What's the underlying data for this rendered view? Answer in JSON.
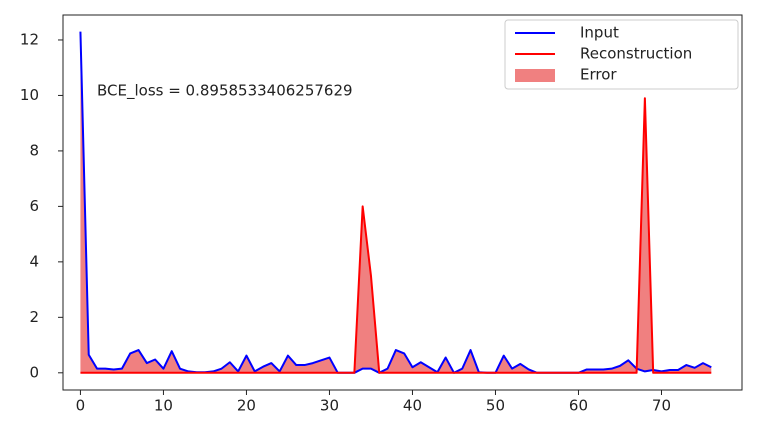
{
  "chart_data": {
    "type": "line",
    "annotation": "BCE_loss = 0.8958533406257629",
    "x": [
      0,
      1,
      2,
      3,
      4,
      5,
      6,
      7,
      8,
      9,
      10,
      11,
      12,
      13,
      14,
      15,
      16,
      17,
      18,
      19,
      20,
      21,
      22,
      23,
      24,
      25,
      26,
      27,
      28,
      29,
      30,
      31,
      32,
      33,
      34,
      35,
      36,
      37,
      38,
      39,
      40,
      41,
      42,
      43,
      44,
      45,
      46,
      47,
      48,
      49,
      50,
      51,
      52,
      53,
      54,
      55,
      56,
      57,
      58,
      59,
      60,
      61,
      62,
      63,
      64,
      65,
      66,
      67,
      68,
      69,
      70,
      71,
      72,
      73,
      74,
      75,
      76
    ],
    "series": [
      {
        "name": "Input",
        "color": "#0000ff",
        "values": [
          12.3,
          0.65,
          0.15,
          0.15,
          0.12,
          0.15,
          0.7,
          0.82,
          0.35,
          0.48,
          0.15,
          0.78,
          0.15,
          0.05,
          0.02,
          0.02,
          0.05,
          0.15,
          0.38,
          0.05,
          0.62,
          0.05,
          0.22,
          0.35,
          0.05,
          0.62,
          0.28,
          0.28,
          0.35,
          0.45,
          0.55,
          0,
          0,
          0,
          0.15,
          0.15,
          0,
          0.15,
          0.82,
          0.7,
          0.2,
          0.38,
          0.2,
          0.02,
          0.55,
          0,
          0.15,
          0.82,
          0.02,
          0,
          0,
          0.62,
          0.15,
          0.32,
          0.12,
          0,
          0,
          0,
          0,
          0,
          0,
          0.12,
          0.12,
          0.12,
          0.15,
          0.25,
          0.45,
          0.15,
          0.05,
          0.1,
          0.05,
          0.1,
          0.1,
          0.28,
          0.18,
          0.35,
          0.2
        ]
      },
      {
        "name": "Reconstruction",
        "color": "#ff0000",
        "values": [
          0,
          0,
          0,
          0,
          0,
          0,
          0,
          0,
          0,
          0,
          0,
          0,
          0,
          0,
          0,
          0,
          0,
          0,
          0,
          0,
          0,
          0,
          0,
          0,
          0,
          0,
          0,
          0,
          0,
          0,
          0,
          0,
          0,
          0,
          6.0,
          3.5,
          0,
          0,
          0,
          0,
          0,
          0,
          0,
          0,
          0,
          0,
          0,
          0,
          0,
          0,
          0,
          0,
          0,
          0,
          0,
          0,
          0,
          0,
          0,
          0,
          0,
          0,
          0,
          0,
          0,
          0,
          0,
          0,
          9.9,
          0,
          0,
          0,
          0,
          0,
          0,
          0,
          0
        ]
      }
    ],
    "fill_between": {
      "name": "Error",
      "color": "#f08080"
    },
    "xlim": [
      -2.1,
      79.7
    ],
    "ylim": [
      -0.62,
      12.9
    ],
    "xticks": [
      0,
      10,
      20,
      30,
      40,
      50,
      60,
      70
    ],
    "yticks": [
      0,
      2,
      4,
      6,
      8,
      10,
      12
    ],
    "legend": "upper right"
  }
}
